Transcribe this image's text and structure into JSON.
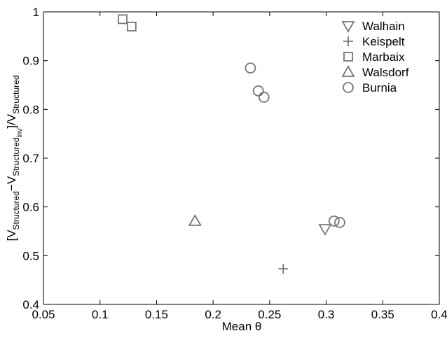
{
  "chart_data": {
    "type": "scatter",
    "x_label": "Mean θ",
    "y_label": [
      "[V",
      "Structured",
      "−V",
      "Structured",
      "inv",
      "]/V",
      "Structured"
    ],
    "xlim": [
      0.05,
      0.4
    ],
    "xticks": [
      0.05,
      0.1,
      0.15,
      0.2,
      0.25,
      0.3,
      0.35,
      0.4
    ],
    "ylim": [
      0.4,
      1
    ],
    "yticks": [
      0.4,
      0.5,
      0.6,
      0.7,
      0.8,
      0.9,
      1
    ],
    "legend": "upper right",
    "series": [
      {
        "name": "Walhain",
        "color": "#777777",
        "marker": "triangle-down",
        "x": [
          0.299
        ],
        "values": [
          0.555
        ]
      },
      {
        "name": "Keispelt",
        "color": "#777777",
        "marker": "plus",
        "x": [
          0.262
        ],
        "values": [
          0.473
        ]
      },
      {
        "name": "Marbaix",
        "color": "#777777",
        "marker": "square",
        "x": [
          0.12,
          0.128
        ],
        "values": [
          0.985,
          0.97
        ]
      },
      {
        "name": "Walsdorf",
        "color": "#777777",
        "marker": "triangle-up",
        "x": [
          0.184
        ],
        "values": [
          0.571
        ]
      },
      {
        "name": "Burnia",
        "color": "#777777",
        "marker": "circle",
        "x": [
          0.233,
          0.24,
          0.245,
          0.307,
          0.312
        ],
        "values": [
          0.885,
          0.838,
          0.825,
          0.571,
          0.568
        ]
      }
    ]
  }
}
